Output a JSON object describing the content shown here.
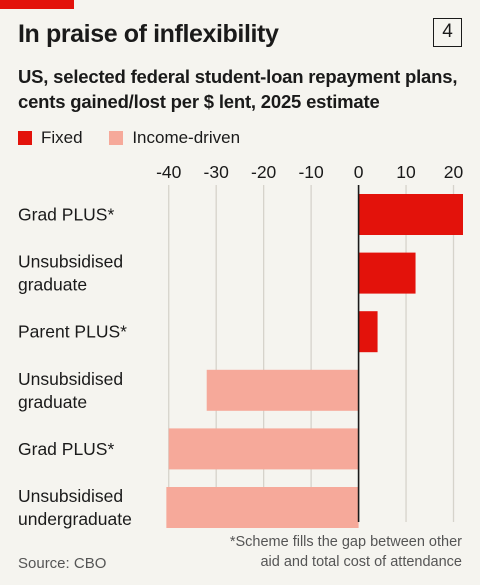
{
  "header": {
    "title": "In praise of inflexibility",
    "chart_number": "4",
    "subtitle": "US, selected federal student-loan repayment plans, cents gained/lost per $ lent, 2025 estimate"
  },
  "legend": [
    {
      "label": "Fixed",
      "color": "#e3120b"
    },
    {
      "label": "Income-driven",
      "color": "#f6a99a"
    }
  ],
  "chart_data": {
    "type": "bar",
    "orientation": "horizontal",
    "xlim": [
      -45,
      22
    ],
    "ticks": [
      -40,
      -30,
      -20,
      -10,
      0,
      10,
      20
    ],
    "tick_labels": [
      "-40",
      "-30",
      "-20",
      "-10",
      "0",
      "10",
      "20"
    ],
    "grid": true,
    "legend_position": "top-left",
    "categories": [
      [
        "Grad PLUS*"
      ],
      [
        "Unsubsidised",
        "graduate"
      ],
      [
        "Parent PLUS*"
      ],
      [
        "Unsubsidised",
        "graduate"
      ],
      [
        "Grad PLUS*"
      ],
      [
        "Unsubsidised",
        "undergraduate"
      ]
    ],
    "series": [
      {
        "name": "Fixed",
        "color": "#e3120b",
        "values": [
          22,
          12,
          4,
          null,
          null,
          null
        ]
      },
      {
        "name": "Income-driven",
        "color": "#f6a99a",
        "values": [
          null,
          null,
          null,
          -32,
          -40,
          -40.5
        ]
      }
    ]
  },
  "footnote": [
    "*Scheme fills the gap between other",
    "aid and total cost of attendance"
  ],
  "source": "Source: CBO"
}
